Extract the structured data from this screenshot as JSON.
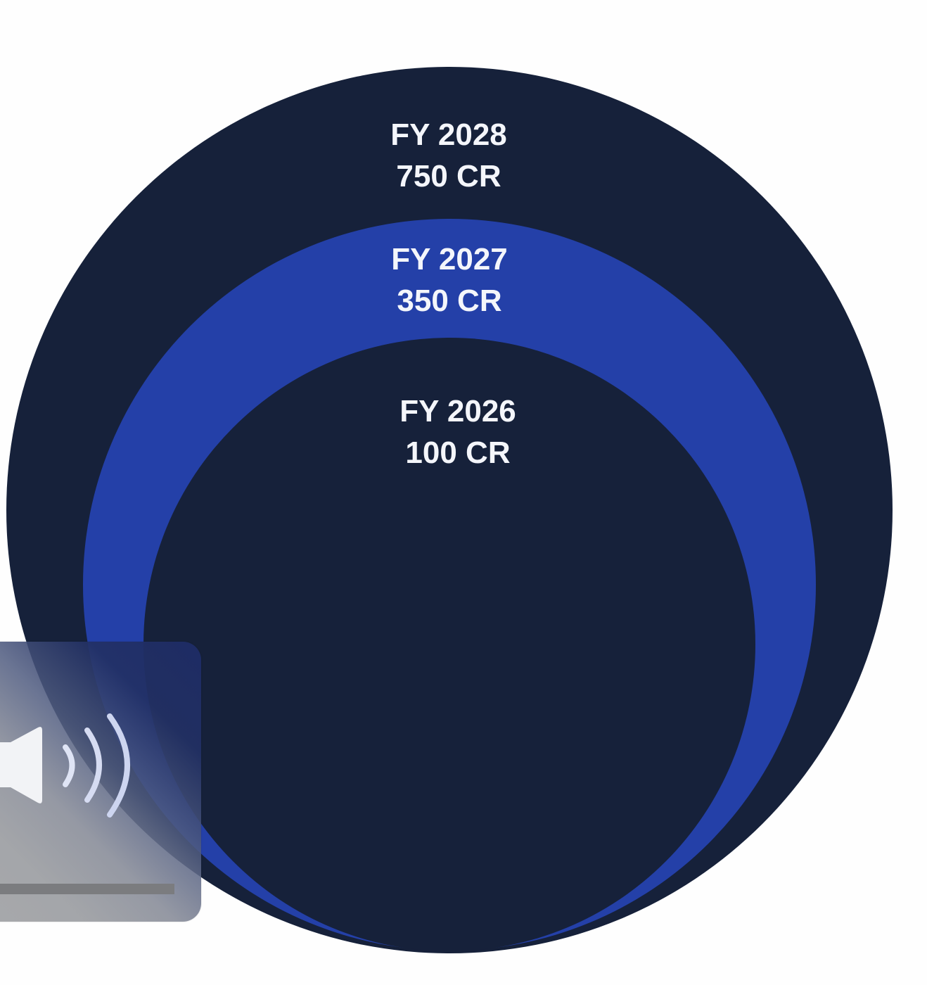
{
  "circles": [
    {
      "year": "FY 2028",
      "value": "750 CR",
      "color": "#16213a"
    },
    {
      "year": "FY 2027",
      "value": "350 CR",
      "color": "#2440a8"
    },
    {
      "year": "FY 2026",
      "value": "100 CR",
      "color": "#16213a"
    }
  ],
  "page": {
    "background": "#fefefe"
  },
  "volume_overlay": {
    "icon": "speaker-volume-icon",
    "level": 1.0
  }
}
